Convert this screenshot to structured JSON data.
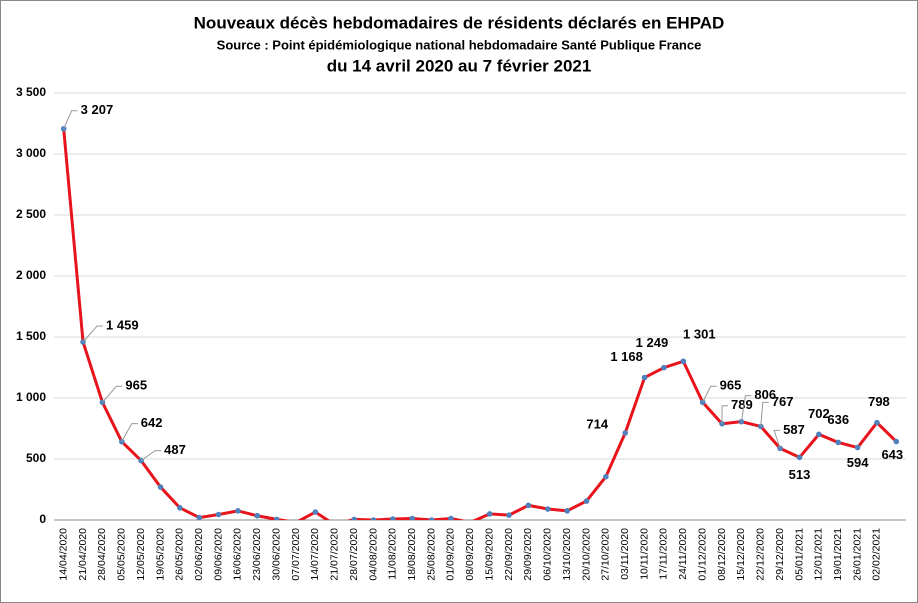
{
  "chart_data": {
    "type": "line",
    "title": "Nouveaux décès hebdomadaires de résidents déclarés en EHPAD",
    "subtitle": "Source : Point épidémiologique national hebdomadaire Santé Publique France",
    "subtitle2": "du 14 avril 2020 au 7 février 2021",
    "categories": [
      "14/04/2020",
      "21/04/2020",
      "28/04/2020",
      "05/05/2020",
      "12/05/2020",
      "19/05/2020",
      "26/05/2020",
      "02/06/2020",
      "09/06/2020",
      "16/06/2020",
      "23/06/2020",
      "30/06/2020",
      "07/07/2020",
      "14/07/2020",
      "21/07/2020",
      "28/07/2020",
      "04/08/2020",
      "11/08/2020",
      "18/08/2020",
      "25/08/2020",
      "01/09/2020",
      "08/09/2020",
      "15/09/2020",
      "22/09/2020",
      "29/09/2020",
      "06/10/2020",
      "13/10/2020",
      "20/10/2020",
      "27/10/2020",
      "03/11/2020",
      "10/11/2020",
      "17/11/2020",
      "24/11/2020",
      "01/12/2020",
      "08/12/2020",
      "15/12/2020",
      "22/12/2020",
      "29/12/2020",
      "05/01/2021",
      "12/01/2021",
      "19/01/2021",
      "26/01/2021",
      "02/02/2021",
      null
    ],
    "series": [
      {
        "name": "Nouveaux décès",
        "color": "#e8141c",
        "marker_color": "#4f81bd",
        "values": [
          3207,
          1459,
          965,
          642,
          487,
          270,
          100,
          20,
          45,
          75,
          35,
          5,
          -20,
          65,
          -40,
          5,
          0,
          8,
          12,
          0,
          12,
          -20,
          50,
          40,
          120,
          90,
          75,
          155,
          355,
          714,
          1168,
          1249,
          1301,
          965,
          789,
          806,
          767,
          587,
          513,
          702,
          636,
          594,
          798,
          643
        ],
        "value_labels": [
          "3 207",
          "1 459",
          "965",
          "642",
          "487",
          null,
          null,
          null,
          null,
          null,
          null,
          null,
          null,
          null,
          null,
          null,
          null,
          null,
          null,
          null,
          null,
          null,
          null,
          null,
          null,
          null,
          null,
          null,
          null,
          "714",
          "1 168",
          "1 249",
          "1 301",
          "965",
          "789",
          "806",
          "767",
          "587",
          "513",
          "702",
          "636",
          "594",
          "798",
          "643"
        ]
      }
    ],
    "ylim": [
      0,
      3500
    ],
    "yticks": [
      0,
      500,
      {
        "value": 1000,
        "label": "1 000"
      },
      {
        "value": 1500,
        "label": "1 500"
      },
      {
        "value": 2000,
        "label": "2 000"
      },
      {
        "value": 2500,
        "label": "2 500"
      },
      {
        "value": 3000,
        "label": "3 000"
      },
      {
        "value": 3500,
        "label": "3 500"
      }
    ],
    "grid": true
  }
}
